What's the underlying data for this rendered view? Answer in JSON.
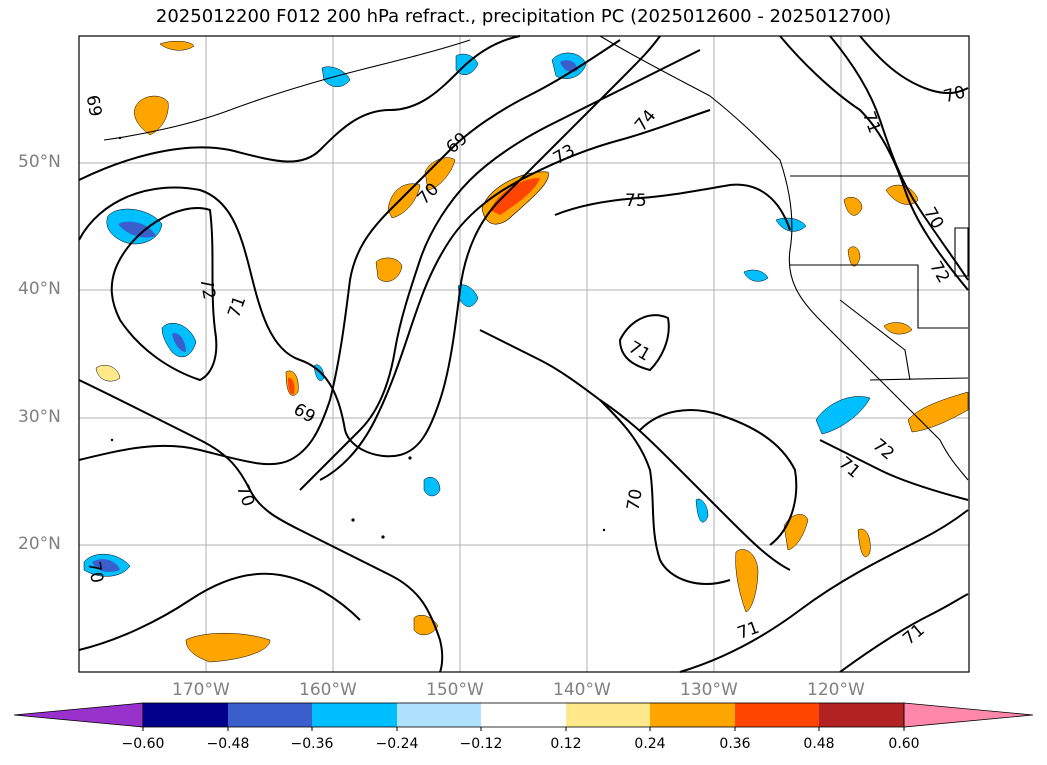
{
  "title": "2025012200 F012 200 hPa refract., precipitation PC (2025012600 - 2025012700)",
  "map": {
    "lat_labels": [
      "50°N",
      "40°N",
      "30°N",
      "20°N"
    ],
    "lon_labels": [
      "170°W",
      "160°W",
      "150°W",
      "140°W",
      "130°W",
      "120°W"
    ],
    "contour_labels": [
      "69",
      "69",
      "69",
      "70",
      "70",
      "70",
      "70",
      "70",
      "70",
      "71",
      "71",
      "71",
      "71",
      "71",
      "71",
      "72",
      "72",
      "72",
      "73",
      "74",
      "75"
    ]
  },
  "colorbar": {
    "tick_labels": [
      "−0.60",
      "−0.48",
      "−0.36",
      "−0.24",
      "−0.12",
      "0.12",
      "0.24",
      "0.36",
      "0.48",
      "0.60"
    ],
    "colors": [
      "#9932cc",
      "#00008b",
      "#3a5fcd",
      "#00bfff",
      "#b0e2ff",
      "#ffffff",
      "#ffe98a",
      "#ffa500",
      "#ff4500",
      "#b22222",
      "#ff88aa"
    ]
  }
}
